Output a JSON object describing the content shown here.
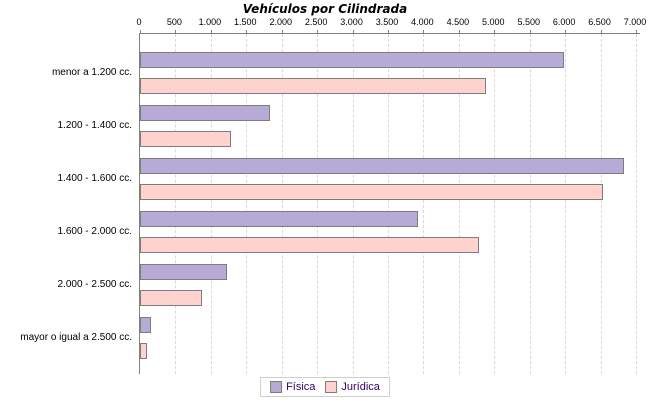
{
  "title": "Vehículos por Cilindrada",
  "legend": {
    "items": [
      {
        "label": "Física",
        "color": "#b5abd6"
      },
      {
        "label": "Jurídica",
        "color": "#ffd2ce"
      }
    ]
  },
  "colors": {
    "bar_border": "#7d7d7d",
    "axis_line": "#808080",
    "gridline": "#d9d9d9",
    "legend_text": "#330066",
    "legend_border": "#cfcfcf",
    "background": "#ffffff",
    "title_text": "#000000"
  },
  "chart_data": {
    "type": "bar",
    "orientation": "horizontal",
    "title": "Vehículos por Cilindrada",
    "categories": [
      "menor a 1.200 cc.",
      "1.200 - 1.400 cc.",
      "1.400 - 1.600 cc.",
      "1.600 - 2.000 cc.",
      "2.000 - 2.500 cc.",
      "mayor o igual a 2.500 cc."
    ],
    "series": [
      {
        "name": "Física",
        "color": "#b5abd6",
        "values": [
          5950,
          1800,
          6800,
          3900,
          1200,
          125
        ]
      },
      {
        "name": "Jurídica",
        "color": "#ffd2ce",
        "values": [
          4850,
          1250,
          6500,
          4750,
          850,
          75
        ]
      }
    ],
    "xlabel": "",
    "ylabel": "",
    "xlim": [
      0,
      7000
    ],
    "x_ticks": [
      0,
      500,
      1000,
      1500,
      2000,
      2500,
      3000,
      3500,
      4000,
      4500,
      5000,
      5500,
      6000,
      6500,
      7000
    ],
    "x_tick_labels": [
      "0",
      "500",
      "1.000",
      "1.500",
      "2.000",
      "2.500",
      "3.000",
      "3.500",
      "4.000",
      "4.500",
      "5.000",
      "5.500",
      "6.000",
      "6.500",
      "7.000"
    ],
    "grid": "vertical-dashed",
    "axis_position": "top",
    "legend_position": "bottom-center"
  }
}
